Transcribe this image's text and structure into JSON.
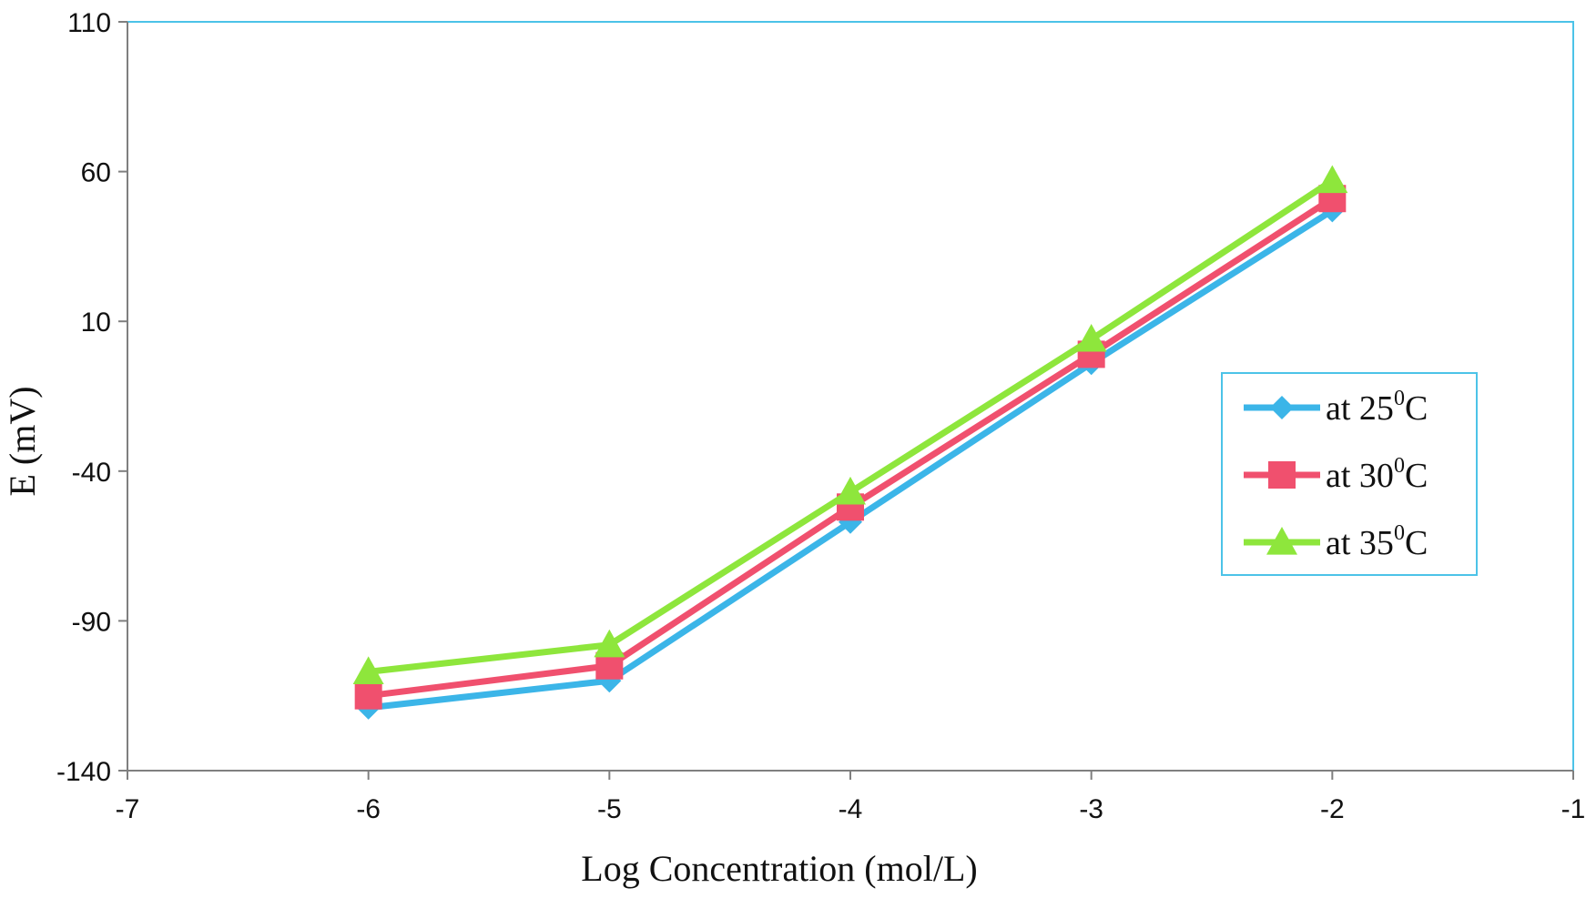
{
  "chart_data": {
    "type": "line",
    "title": "",
    "xlabel": "Log Concentration (mol/L)",
    "ylabel": "E (mV)",
    "xlim": [
      -7,
      -1
    ],
    "ylim": [
      -140,
      110
    ],
    "xticks": [
      -7,
      -6,
      -5,
      -4,
      -3,
      -2,
      -1
    ],
    "yticks": [
      -140,
      -90,
      -40,
      10,
      60,
      110
    ],
    "x": [
      -6,
      -5,
      -4,
      -3,
      -2
    ],
    "series": [
      {
        "name": "at 25⁰C",
        "prefix": "at 25",
        "sup": "0",
        "suffix": "C",
        "marker": "diamond",
        "color": "#3bb5e8",
        "values": [
          -119,
          -110,
          -57,
          -4,
          47
        ]
      },
      {
        "name": "at 30⁰C",
        "prefix": "at 30",
        "sup": "0",
        "suffix": "C",
        "marker": "square",
        "color": "#f0506e",
        "values": [
          -115,
          -105,
          -52,
          -1,
          51
        ]
      },
      {
        "name": "at 35⁰C",
        "prefix": "at 35",
        "sup": "0",
        "suffix": "C",
        "marker": "triangle",
        "color": "#8ee63c",
        "values": [
          -107,
          -98,
          -47,
          4,
          57
        ]
      }
    ],
    "legend": "right",
    "grid": false
  },
  "colors": {
    "plot_border": "#4cc3e8",
    "axis": "#7f7f7f",
    "legend_border": "#4cc3e8"
  }
}
